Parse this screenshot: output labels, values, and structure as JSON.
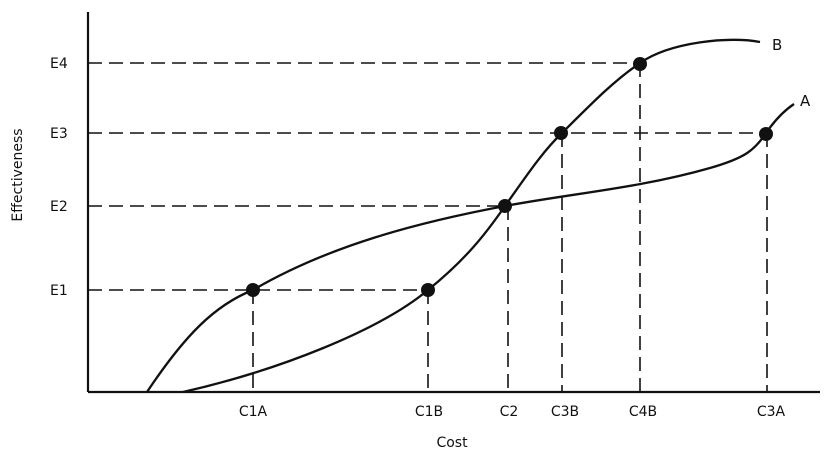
{
  "chart_data": {
    "type": "line",
    "xlabel": "Cost",
    "ylabel": "Effectiveness",
    "x_ticks": [
      "C1A",
      "C1B",
      "C2",
      "C3B",
      "C4B",
      "C3A"
    ],
    "y_ticks": [
      "E1",
      "E2",
      "E3",
      "E4"
    ],
    "series": [
      {
        "name": "A",
        "marked_points": [
          [
            "C1A",
            "E1"
          ],
          [
            "C2",
            "E2"
          ],
          [
            "C3A",
            "E3"
          ]
        ]
      },
      {
        "name": "B",
        "marked_points": [
          [
            "C1B",
            "E1"
          ],
          [
            "C2",
            "E2"
          ],
          [
            "C3B",
            "E3"
          ],
          [
            "C4B",
            "E4"
          ]
        ]
      }
    ],
    "dashed_guides": true,
    "grid": false
  }
}
